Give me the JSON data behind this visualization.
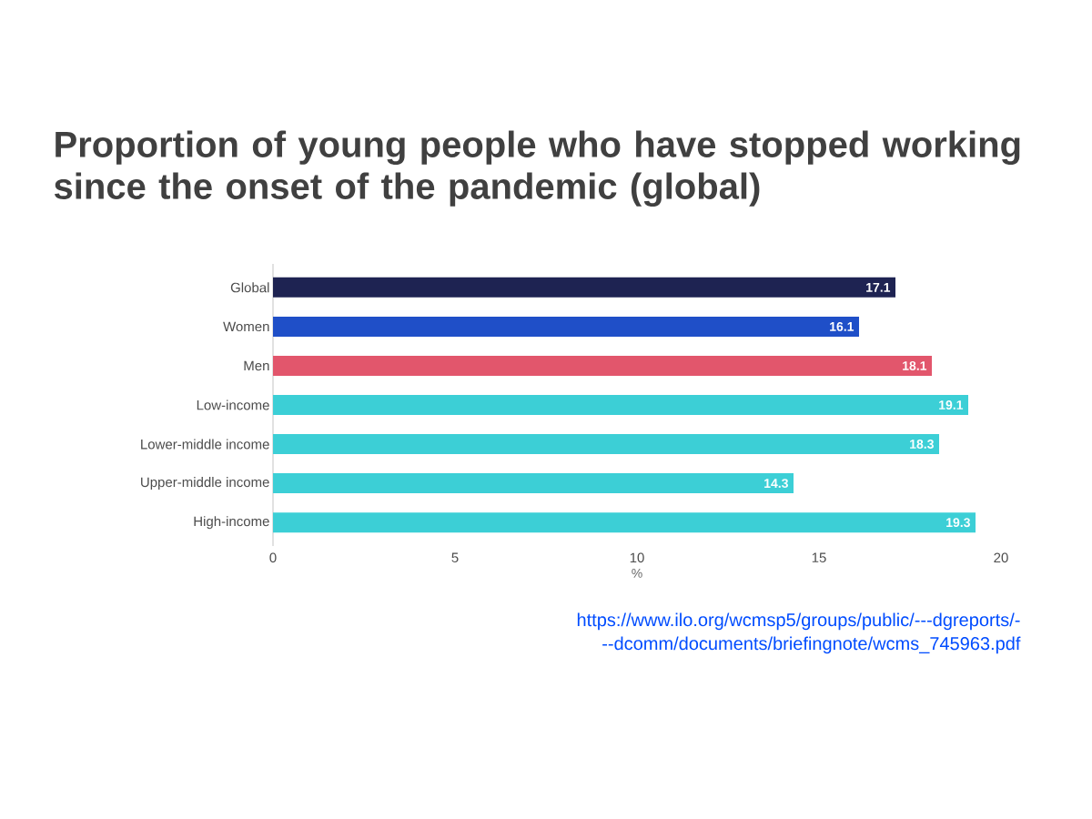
{
  "chart_data": {
    "type": "bar",
    "orientation": "horizontal",
    "title": "Proportion of young people who have stopped working since the onset of the pandemic (global)",
    "categories": [
      "Global",
      "Women",
      "Men",
      "Low-income",
      "Lower-middle income",
      "Upper-middle income",
      "High-income"
    ],
    "values": [
      17.1,
      16.1,
      18.1,
      19.1,
      18.3,
      14.3,
      19.3
    ],
    "colors": [
      "#1e2352",
      "#1f4fc8",
      "#e2566c",
      "#3ccfd6",
      "#3ccfd6",
      "#3ccfd6",
      "#3ccfd6"
    ],
    "xlim": [
      0,
      20
    ],
    "xticks": [
      0,
      5,
      10,
      15,
      20
    ],
    "xlabel": "%",
    "data_labels": true,
    "annotations": [
      "https://www.ilo.org/wcmsp5/groups/public/---dgreports/---dcomm/documents/briefingnote/wcms_745963.pdf"
    ]
  }
}
